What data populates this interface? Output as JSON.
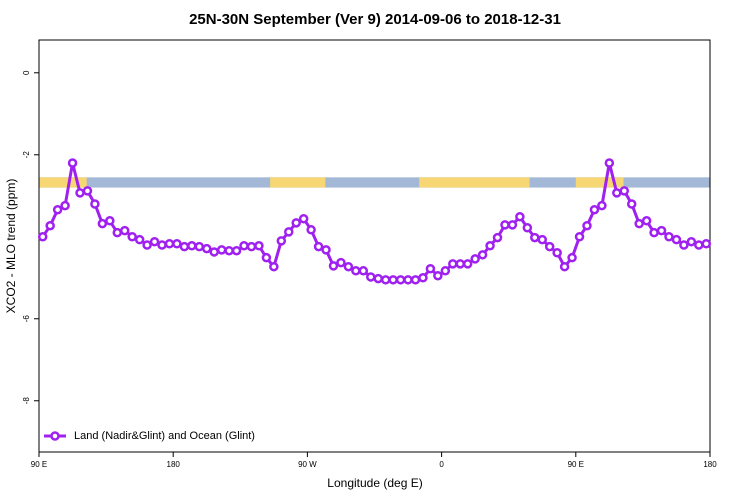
{
  "chart_data": {
    "type": "line",
    "title": "25N-30N September (Ver 9)   2014-09-06 to 2018-12-31",
    "x_label": "Longitude (deg E)",
    "y_label": "XCO2 - MLO trend (ppm)",
    "xlim": [
      90,
      540
    ],
    "ylim": [
      -9.25,
      0.8
    ],
    "xticks": [
      {
        "value": 90,
        "label": "90 E"
      },
      180,
      {
        "value": 270,
        "label": "90 W"
      },
      {
        "value": 360,
        "label": "0"
      },
      {
        "value": 450,
        "label": "90 E"
      },
      {
        "value": 540,
        "label": "180"
      }
    ],
    "yticks": [
      0,
      -2,
      -6,
      -8
    ],
    "legend": "bottom-left",
    "land_band": {
      "y": [
        -2.55,
        -2.8
      ],
      "land_color": "#f7d774",
      "ocean_color": "#a3b8d6",
      "land": [
        [
          90,
          122
        ],
        [
          245,
          282
        ],
        [
          345,
          419
        ],
        [
          450,
          482
        ]
      ]
    },
    "x": [
      92.5,
      97.5,
      102.5,
      107.5,
      112.5,
      117.5,
      122.5,
      127.5,
      132.5,
      137.5,
      142.5,
      147.5,
      152.5,
      157.5,
      162.5,
      167.5,
      172.5,
      177.5,
      182.5,
      187.5,
      192.5,
      197.5,
      202.5,
      207.5,
      212.5,
      217.5,
      222.5,
      227.5,
      232.5,
      237.5,
      242.5,
      247.5,
      252.5,
      257.5,
      262.5,
      267.5,
      272.5,
      277.5,
      282.5,
      287.5,
      292.5,
      297.5,
      302.5,
      307.5,
      312.5,
      317.5,
      322.5,
      327.5,
      332.5,
      337.5,
      342.5,
      347.5,
      352.5,
      357.5,
      362.5,
      367.5,
      372.5,
      377.5,
      382.5,
      387.5,
      392.5,
      397.5,
      402.5,
      407.5,
      412.5,
      417.5,
      422.5,
      427.5,
      432.5,
      437.5,
      442.5,
      447.5,
      452.5,
      457.5,
      462.5,
      467.5,
      472.5,
      477.5,
      482.5,
      487.5,
      492.5,
      497.5,
      502.5,
      507.5,
      512.5,
      517.5,
      522.5,
      527.5,
      532.5,
      537.5
    ],
    "series": [
      {
        "name": "Land (Nadir&Glint) and Ocean (Glint)",
        "color": "#a020f0",
        "values": [
          -4.0,
          -3.73,
          -3.34,
          -3.24,
          -2.2,
          -2.93,
          -2.88,
          -3.2,
          -3.68,
          -3.61,
          -3.9,
          -3.85,
          -4.0,
          -4.07,
          -4.2,
          -4.12,
          -4.2,
          -4.17,
          -4.17,
          -4.24,
          -4.22,
          -4.24,
          -4.29,
          -4.37,
          -4.32,
          -4.34,
          -4.34,
          -4.22,
          -4.24,
          -4.22,
          -4.51,
          -4.73,
          -4.1,
          -3.88,
          -3.66,
          -3.56,
          -3.83,
          -4.24,
          -4.32,
          -4.71,
          -4.63,
          -4.73,
          -4.83,
          -4.83,
          -4.98,
          -5.02,
          -5.05,
          -5.05,
          -5.05,
          -5.05,
          -5.05,
          -5.0,
          -4.78,
          -4.95,
          -4.83,
          -4.66,
          -4.66,
          -4.66,
          -4.54,
          -4.44,
          -4.22,
          -4.02,
          -3.71,
          -3.71,
          -3.51,
          -3.78,
          -4.02,
          -4.07,
          -4.24,
          -4.39,
          -4.73,
          -4.51,
          -4.0,
          -3.73,
          -3.34,
          -3.24,
          -2.2,
          -2.93,
          -2.88,
          -3.2,
          -3.68,
          -3.61,
          -3.9,
          -3.85,
          -4.0,
          -4.07,
          -4.2,
          -4.12,
          -4.2,
          -4.17
        ]
      }
    ]
  }
}
